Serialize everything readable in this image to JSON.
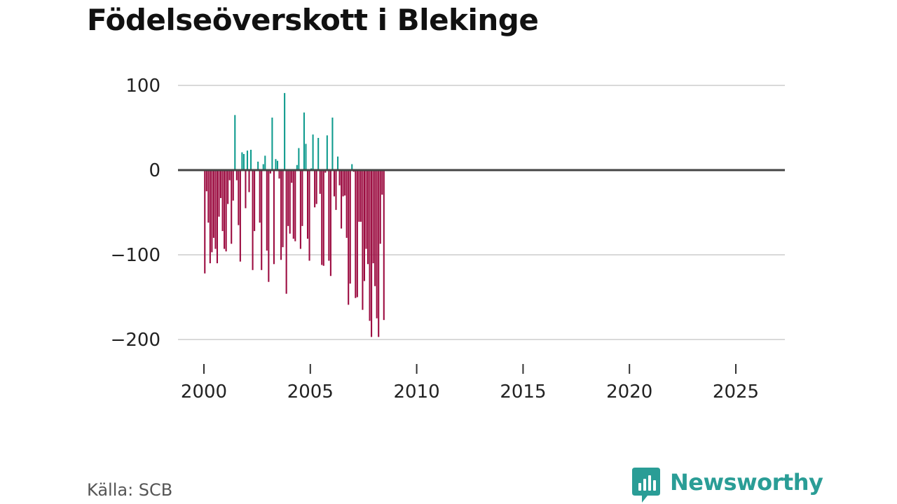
{
  "title": "Födelseöverskott i Blekinge",
  "source": "Källa: SCB",
  "brand": {
    "name": "Newsworthy",
    "icon": "bar-chart-speech-bubble-icon",
    "color": "#2a9d96"
  },
  "colors": {
    "positive": "#0f9b8e",
    "negative": "#9b0a3f",
    "zero_line": "#444444",
    "grid": "#d9d9d9"
  },
  "chart_data": {
    "type": "bar",
    "title": "Födelseöverskott i Blekinge",
    "xlabel": "",
    "ylabel": "",
    "ylim": [
      -220,
      110
    ],
    "xlim": [
      1999.4,
      2027.2
    ],
    "yticks": [
      100,
      0,
      -100,
      -200
    ],
    "ytick_labels": [
      "100",
      "0",
      "−100",
      "−200"
    ],
    "xticks": [
      2000,
      2005,
      2010,
      2015,
      2020,
      2025
    ],
    "xtick_labels": [
      "2000",
      "2005",
      "2010",
      "2015",
      "2020",
      "2025"
    ],
    "grid": true,
    "x_unit": "month",
    "start": {
      "year": 2000,
      "month": 1
    },
    "values": [
      -122,
      -25,
      -62,
      -110,
      -97,
      -80,
      -93,
      -110,
      -55,
      -33,
      -72,
      -93,
      -96,
      -40,
      -12,
      -87,
      -36,
      65,
      -12,
      -65,
      -108,
      21,
      19,
      -45,
      23,
      -26,
      24,
      -118,
      -72,
      1,
      10,
      -62,
      -118,
      7,
      17,
      -95,
      -132,
      -4,
      62,
      -111,
      13,
      11,
      -10,
      -106,
      -91,
      91,
      -146,
      -66,
      -75,
      -15,
      -81,
      -84,
      6,
      26,
      -93,
      -66,
      68,
      31,
      -81,
      -107,
      2,
      42,
      -44,
      -40,
      38,
      -28,
      -112,
      -113,
      -3,
      41,
      -107,
      -125,
      62,
      -31,
      -47,
      16,
      -18,
      -69,
      -31,
      -30,
      -80,
      -159,
      -134,
      7,
      -2,
      -151,
      -150,
      -61,
      -61,
      -165,
      -131,
      -93,
      -111,
      -178,
      -197,
      -110,
      -137,
      -175,
      -197,
      -87,
      -29,
      -177
    ]
  }
}
